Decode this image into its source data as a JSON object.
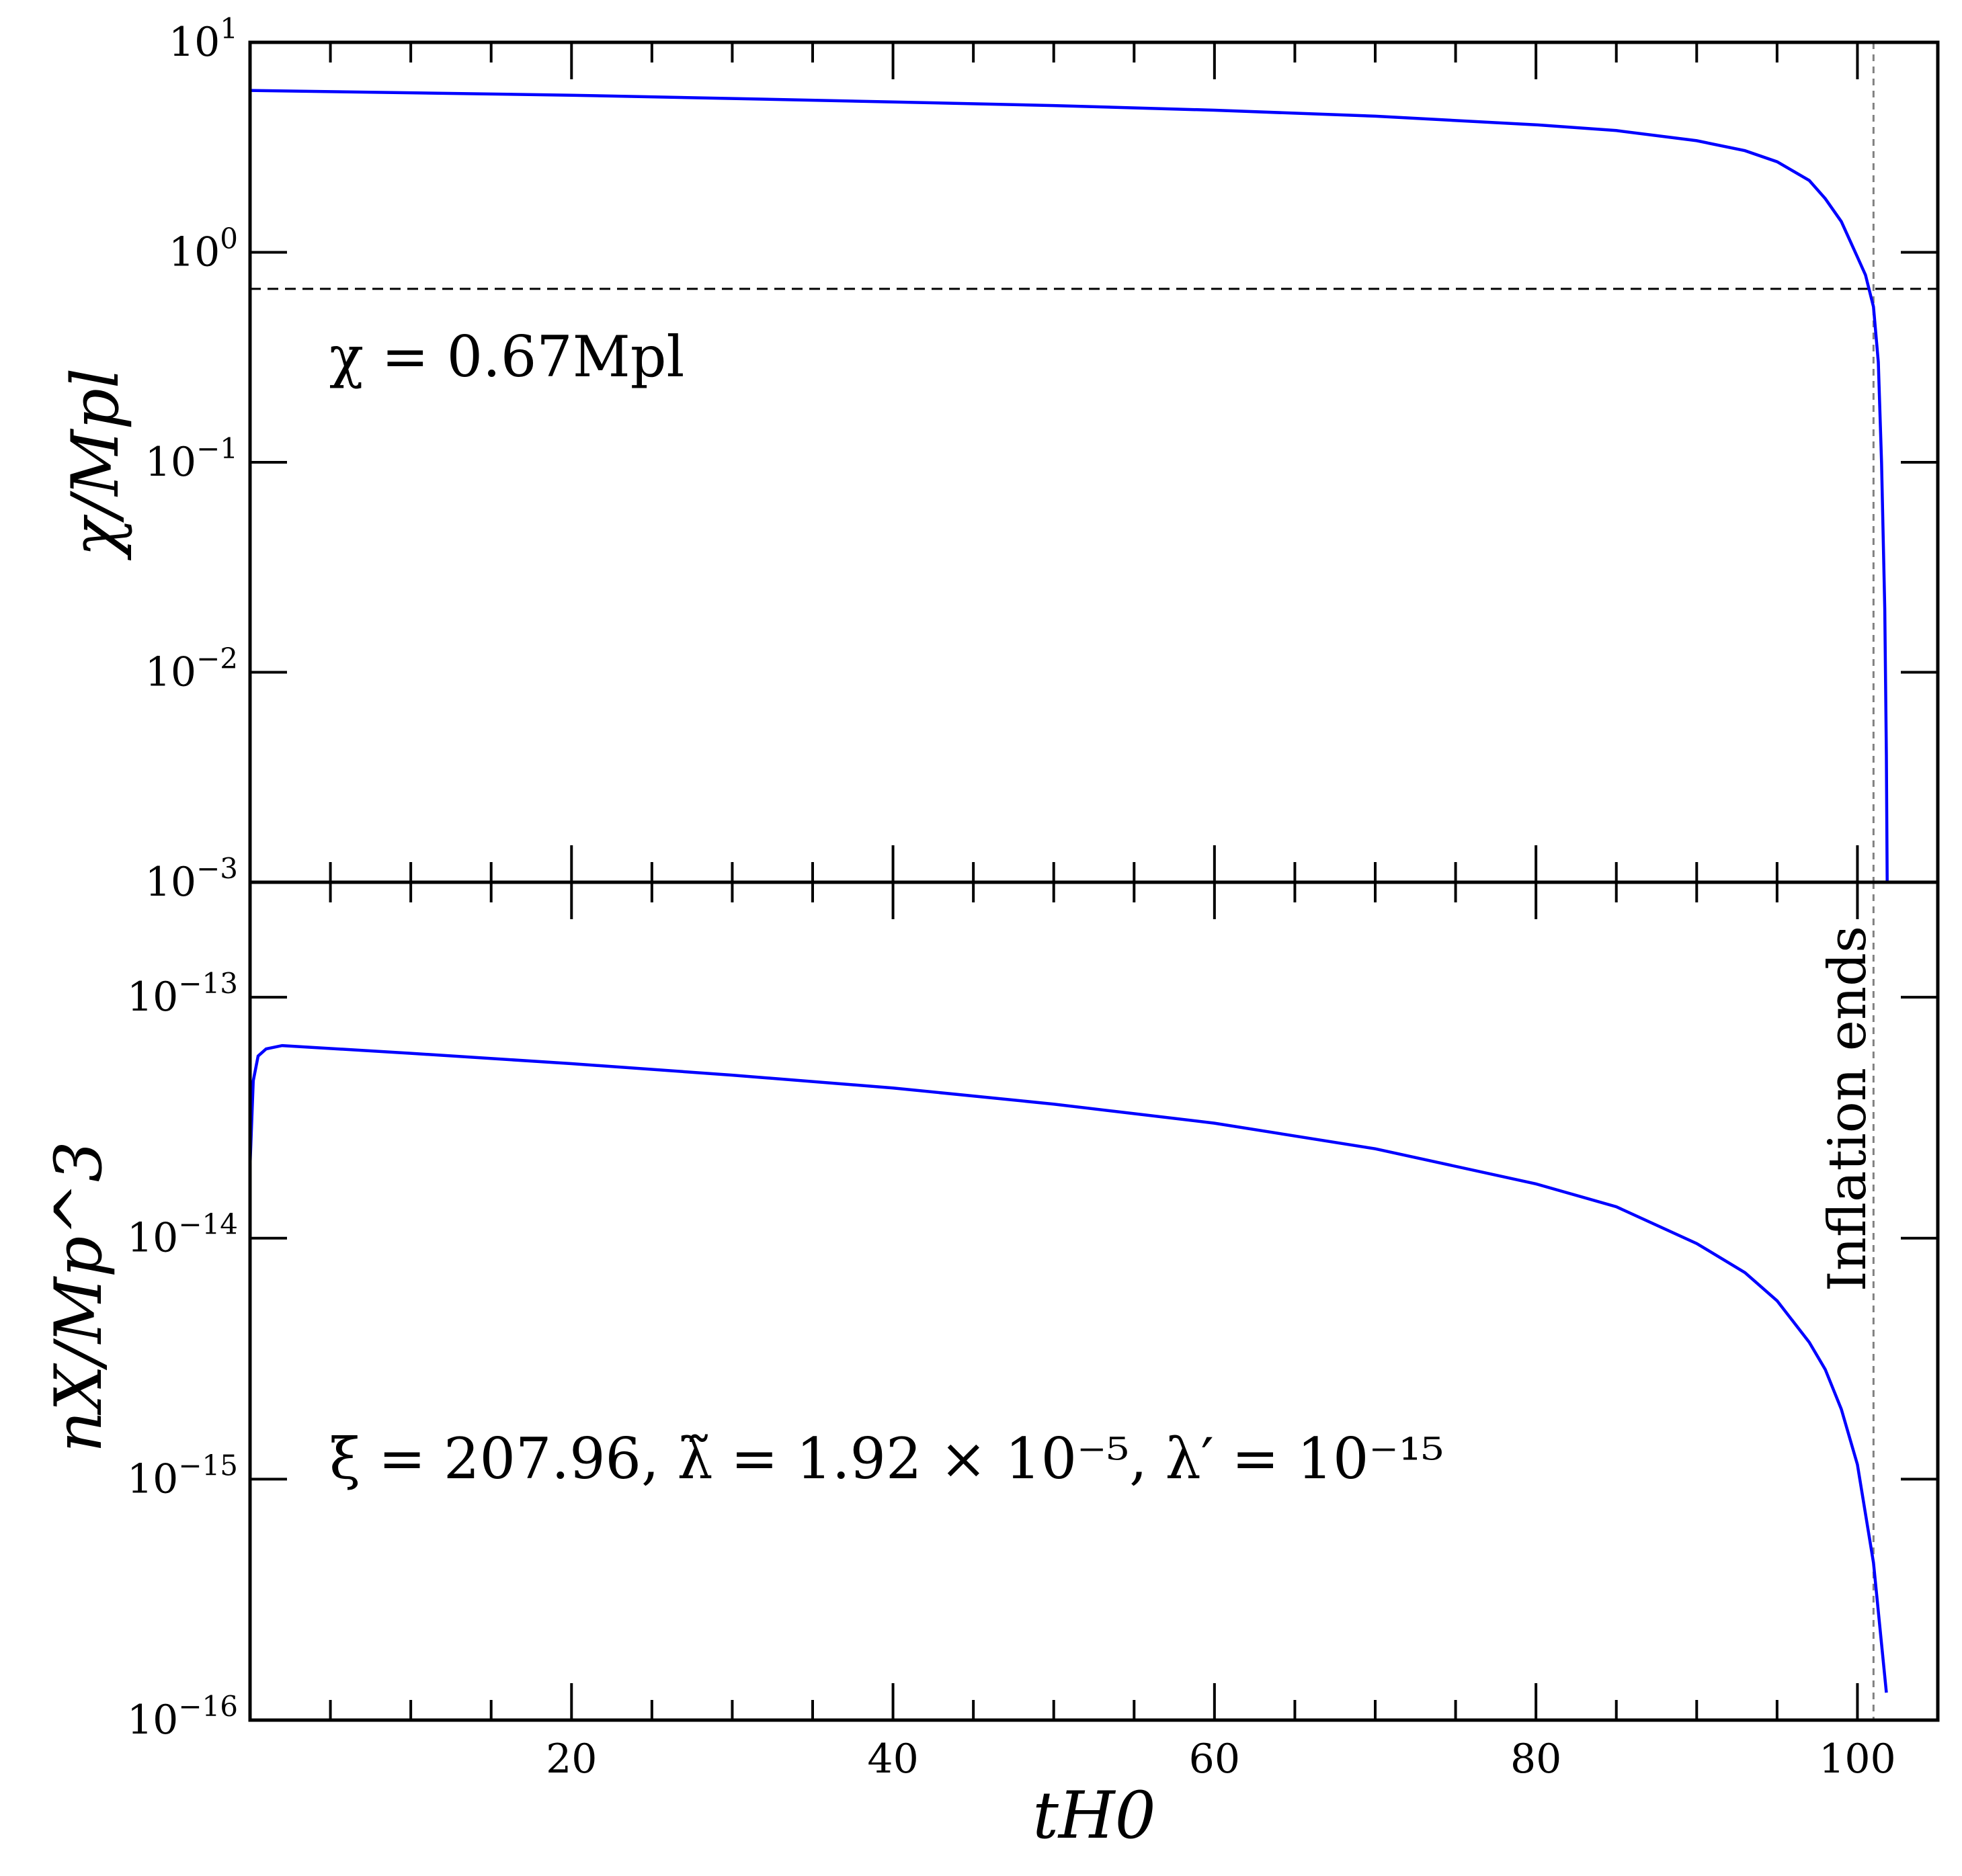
{
  "figure": {
    "shared_x": {
      "label": "tH0",
      "ticks": [
        20,
        40,
        60,
        80,
        100
      ],
      "lim": [
        0,
        105
      ]
    },
    "vline": {
      "x": 101,
      "label": "Inflation ends"
    }
  },
  "chart_data": [
    {
      "type": "line",
      "panel": "top",
      "ylabel": "χ/Mpl",
      "yscale": "log",
      "ylim": [
        0.001,
        10
      ],
      "ytick_exponents": [
        "1",
        "0",
        "−1",
        "−2",
        "−3"
      ],
      "grid": false,
      "hline": {
        "y": 0.67,
        "label": "χ = 0.67Mpl"
      },
      "series": [
        {
          "color": "#0000ff",
          "x": [
            0,
            10,
            20,
            30,
            40,
            50,
            60,
            70,
            80,
            85,
            90,
            93,
            95,
            97,
            98,
            99,
            100,
            100.5,
            101,
            101.3,
            101.5,
            101.7,
            101.8,
            101.85
          ],
          "y": [
            5.9,
            5.75,
            5.6,
            5.4,
            5.2,
            5.0,
            4.75,
            4.45,
            4.05,
            3.8,
            3.4,
            3.05,
            2.7,
            2.2,
            1.8,
            1.4,
            0.95,
            0.78,
            0.55,
            0.3,
            0.1,
            0.02,
            0.004,
            0.001
          ]
        }
      ]
    },
    {
      "type": "line",
      "panel": "bottom",
      "ylabel": "nX/Mp^3",
      "yscale": "log",
      "ylim": [
        1e-16,
        3e-13
      ],
      "ytick_exponents": [
        "−13",
        "−14",
        "−15",
        "−16"
      ],
      "grid": false,
      "annotation": "ξ = 207.96,  λ̃ = 1.92 × 10⁻⁵,  λ′ = 10⁻¹⁵",
      "series": [
        {
          "color": "#0000ff",
          "x": [
            0,
            0.2,
            0.5,
            1,
            2,
            10,
            20,
            30,
            40,
            50,
            60,
            70,
            80,
            85,
            90,
            93,
            95,
            97,
            98,
            99,
            100,
            101,
            101.8
          ],
          "y": [
            2e-14,
            4.5e-14,
            5.7e-14,
            6.1e-14,
            6.3e-14,
            5.85e-14,
            5.3e-14,
            4.75e-14,
            4.2e-14,
            3.6e-14,
            3e-14,
            2.35e-14,
            1.68e-14,
            1.35e-14,
            9.5e-15,
            7.2e-15,
            5.5e-15,
            3.7e-15,
            2.85e-15,
            1.95e-15,
            1.15e-15,
            4.5e-16,
            1.3e-16
          ]
        }
      ]
    }
  ]
}
